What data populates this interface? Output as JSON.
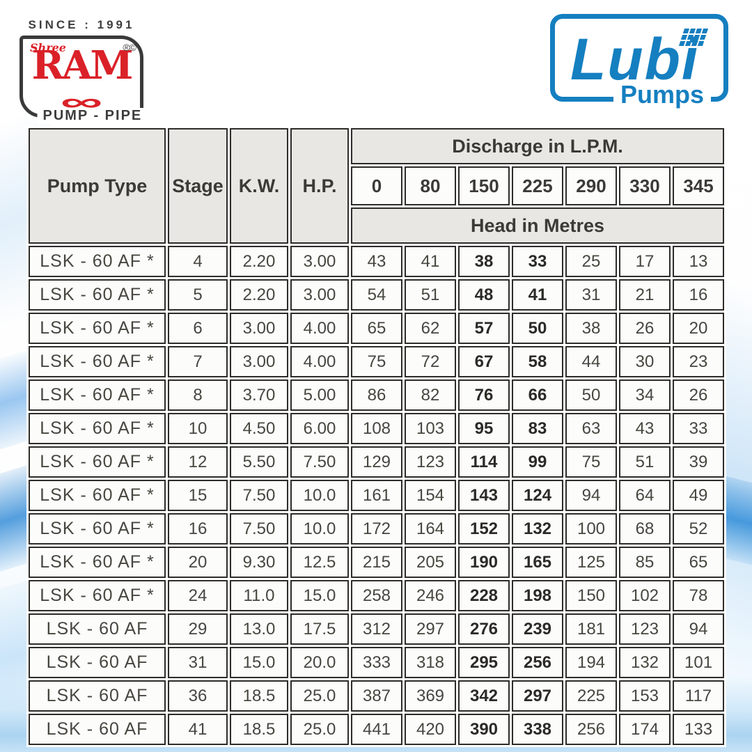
{
  "branding": {
    "ram": {
      "since": "SINCE : 1991",
      "shree": "Shree",
      "name": "RAM",
      "marks": "®©",
      "swirl": "∞",
      "pump_pipe": "PUMP - PIPE",
      "red": "#da2128",
      "dark": "#3a3a3a"
    },
    "lubi": {
      "name": "Lubi",
      "sub": "Pumps",
      "blue": "#157fc0"
    }
  },
  "table": {
    "header": {
      "pump_type": "Pump Type",
      "stage": "Stage",
      "kw": "K.W.",
      "hp": "H.P.",
      "discharge_title": "Discharge in L.P.M.",
      "discharge_values": [
        "0",
        "80",
        "150",
        "225",
        "290",
        "330",
        "345"
      ],
      "head_title": "Head in Metres",
      "bold_value_columns": [
        2,
        3
      ]
    },
    "rows": [
      {
        "pump_type": "LSK - 60 AF *",
        "stage": "4",
        "kw": "2.20",
        "hp": "3.00",
        "heads": [
          "43",
          "41",
          "38",
          "33",
          "25",
          "17",
          "13"
        ]
      },
      {
        "pump_type": "LSK - 60 AF *",
        "stage": "5",
        "kw": "2.20",
        "hp": "3.00",
        "heads": [
          "54",
          "51",
          "48",
          "41",
          "31",
          "21",
          "16"
        ]
      },
      {
        "pump_type": "LSK - 60 AF *",
        "stage": "6",
        "kw": "3.00",
        "hp": "4.00",
        "heads": [
          "65",
          "62",
          "57",
          "50",
          "38",
          "26",
          "20"
        ]
      },
      {
        "pump_type": "LSK - 60 AF *",
        "stage": "7",
        "kw": "3.00",
        "hp": "4.00",
        "heads": [
          "75",
          "72",
          "67",
          "58",
          "44",
          "30",
          "23"
        ]
      },
      {
        "pump_type": "LSK - 60 AF *",
        "stage": "8",
        "kw": "3.70",
        "hp": "5.00",
        "heads": [
          "86",
          "82",
          "76",
          "66",
          "50",
          "34",
          "26"
        ]
      },
      {
        "pump_type": "LSK - 60 AF *",
        "stage": "10",
        "kw": "4.50",
        "hp": "6.00",
        "heads": [
          "108",
          "103",
          "95",
          "83",
          "63",
          "43",
          "33"
        ]
      },
      {
        "pump_type": "LSK - 60 AF *",
        "stage": "12",
        "kw": "5.50",
        "hp": "7.50",
        "heads": [
          "129",
          "123",
          "114",
          "99",
          "75",
          "51",
          "39"
        ]
      },
      {
        "pump_type": "LSK - 60 AF *",
        "stage": "15",
        "kw": "7.50",
        "hp": "10.0",
        "heads": [
          "161",
          "154",
          "143",
          "124",
          "94",
          "64",
          "49"
        ]
      },
      {
        "pump_type": "LSK - 60 AF *",
        "stage": "16",
        "kw": "7.50",
        "hp": "10.0",
        "heads": [
          "172",
          "164",
          "152",
          "132",
          "100",
          "68",
          "52"
        ]
      },
      {
        "pump_type": "LSK - 60 AF *",
        "stage": "20",
        "kw": "9.30",
        "hp": "12.5",
        "heads": [
          "215",
          "205",
          "190",
          "165",
          "125",
          "85",
          "65"
        ]
      },
      {
        "pump_type": "LSK - 60 AF *",
        "stage": "24",
        "kw": "11.0",
        "hp": "15.0",
        "heads": [
          "258",
          "246",
          "228",
          "198",
          "150",
          "102",
          "78"
        ]
      },
      {
        "pump_type": "LSK - 60 AF",
        "stage": "29",
        "kw": "13.0",
        "hp": "17.5",
        "heads": [
          "312",
          "297",
          "276",
          "239",
          "181",
          "123",
          "94"
        ]
      },
      {
        "pump_type": "LSK - 60 AF",
        "stage": "31",
        "kw": "15.0",
        "hp": "20.0",
        "heads": [
          "333",
          "318",
          "295",
          "256",
          "194",
          "132",
          "101"
        ]
      },
      {
        "pump_type": "LSK - 60 AF",
        "stage": "36",
        "kw": "18.5",
        "hp": "25.0",
        "heads": [
          "387",
          "369",
          "342",
          "297",
          "225",
          "153",
          "117"
        ]
      },
      {
        "pump_type": "LSK - 60 AF",
        "stage": "41",
        "kw": "18.5",
        "hp": "25.0",
        "heads": [
          "441",
          "420",
          "390",
          "338",
          "256",
          "174",
          "133"
        ]
      }
    ]
  },
  "colors": {
    "table_border": "#2d2c2a",
    "header_bg": "#e8e7e4",
    "cell_bg": "#fcfcfa",
    "wave_blue": "#4a96da"
  }
}
